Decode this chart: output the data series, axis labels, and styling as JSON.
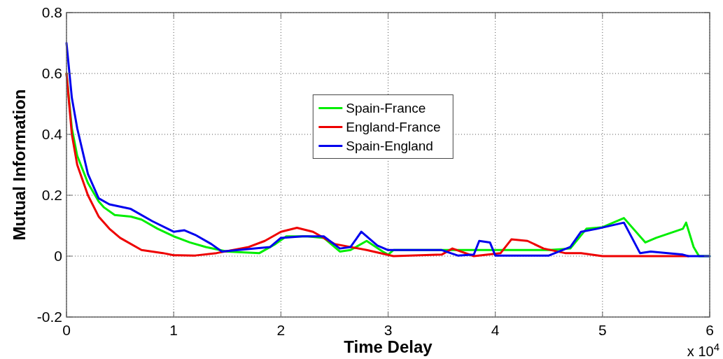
{
  "chart_data": {
    "type": "line",
    "xlabel": "Time Delay",
    "ylabel": "Mutual Information",
    "xlim": [
      0,
      6
    ],
    "xticks": [
      0,
      1,
      2,
      3,
      4,
      5,
      6
    ],
    "ylim": [
      -0.2,
      0.8
    ],
    "yticks": [
      -0.2,
      0,
      0.2,
      0.4,
      0.6,
      0.8
    ],
    "grid": true,
    "legend": "top",
    "line_style": "solid",
    "annotations": [
      "x 10$^{4}$"
    ],
    "series": [
      {
        "name": "Spain-France",
        "color": "#00ee00",
        "x": [
          0,
          0.05,
          0.1,
          0.2,
          0.3,
          0.35,
          0.45,
          0.6,
          0.7,
          0.85,
          1,
          1.15,
          1.3,
          1.5,
          1.8,
          1.95,
          2.05,
          2.25,
          2.4,
          2.55,
          2.65,
          2.8,
          2.95,
          3,
          3.05,
          3.5,
          4,
          4.5,
          4.7,
          4.85,
          5.0,
          5.2,
          5.4,
          5.5,
          5.75,
          5.78,
          5.85,
          5.9,
          6
        ],
        "values": [
          0.6,
          0.42,
          0.33,
          0.24,
          0.18,
          0.16,
          0.135,
          0.13,
          0.12,
          0.09,
          0.065,
          0.045,
          0.03,
          0.015,
          0.01,
          0.04,
          0.065,
          0.065,
          0.06,
          0.015,
          0.02,
          0.05,
          0.015,
          0.005,
          0.02,
          0.02,
          0.02,
          0.02,
          0.025,
          0.09,
          0.095,
          0.125,
          0.045,
          0.06,
          0.09,
          0.11,
          0.03,
          0,
          0
        ]
      },
      {
        "name": "England-France",
        "color": "#ee0000",
        "x": [
          0,
          0.05,
          0.1,
          0.2,
          0.3,
          0.4,
          0.5,
          0.7,
          0.9,
          1,
          1.2,
          1.4,
          1.7,
          1.85,
          2,
          2.15,
          2.3,
          2.5,
          2.8,
          3.05,
          3.5,
          3.6,
          3.8,
          4.05,
          4.15,
          4.3,
          4.45,
          4.65,
          4.8,
          5,
          5.8
        ],
        "values": [
          0.6,
          0.4,
          0.3,
          0.2,
          0.13,
          0.09,
          0.06,
          0.02,
          0.01,
          0.003,
          0.002,
          0.01,
          0.03,
          0.05,
          0.08,
          0.093,
          0.08,
          0.04,
          0.02,
          0,
          0.005,
          0.025,
          0,
          0.01,
          0.055,
          0.05,
          0.025,
          0.01,
          0.01,
          0,
          0
        ]
      },
      {
        "name": "Spain-England",
        "color": "#0000ee",
        "x": [
          0,
          0.05,
          0.1,
          0.2,
          0.3,
          0.4,
          0.6,
          0.8,
          1,
          1.1,
          1.2,
          1.35,
          1.45,
          1.6,
          1.9,
          2,
          2.2,
          2.4,
          2.55,
          2.65,
          2.75,
          2.9,
          3,
          3.5,
          3.65,
          3.8,
          3.85,
          3.95,
          4,
          4.5,
          4.7,
          4.8,
          4.95,
          5.2,
          5.35,
          5.45,
          5.75,
          5.8,
          6
        ],
        "values": [
          0.7,
          0.52,
          0.42,
          0.27,
          0.19,
          0.17,
          0.155,
          0.115,
          0.08,
          0.085,
          0.07,
          0.04,
          0.015,
          0.02,
          0.03,
          0.06,
          0.065,
          0.065,
          0.025,
          0.03,
          0.08,
          0.035,
          0.02,
          0.02,
          0.002,
          0.005,
          0.05,
          0.045,
          0.002,
          0.002,
          0.03,
          0.08,
          0.09,
          0.11,
          0.01,
          0.015,
          0.005,
          0,
          0
        ]
      }
    ]
  }
}
